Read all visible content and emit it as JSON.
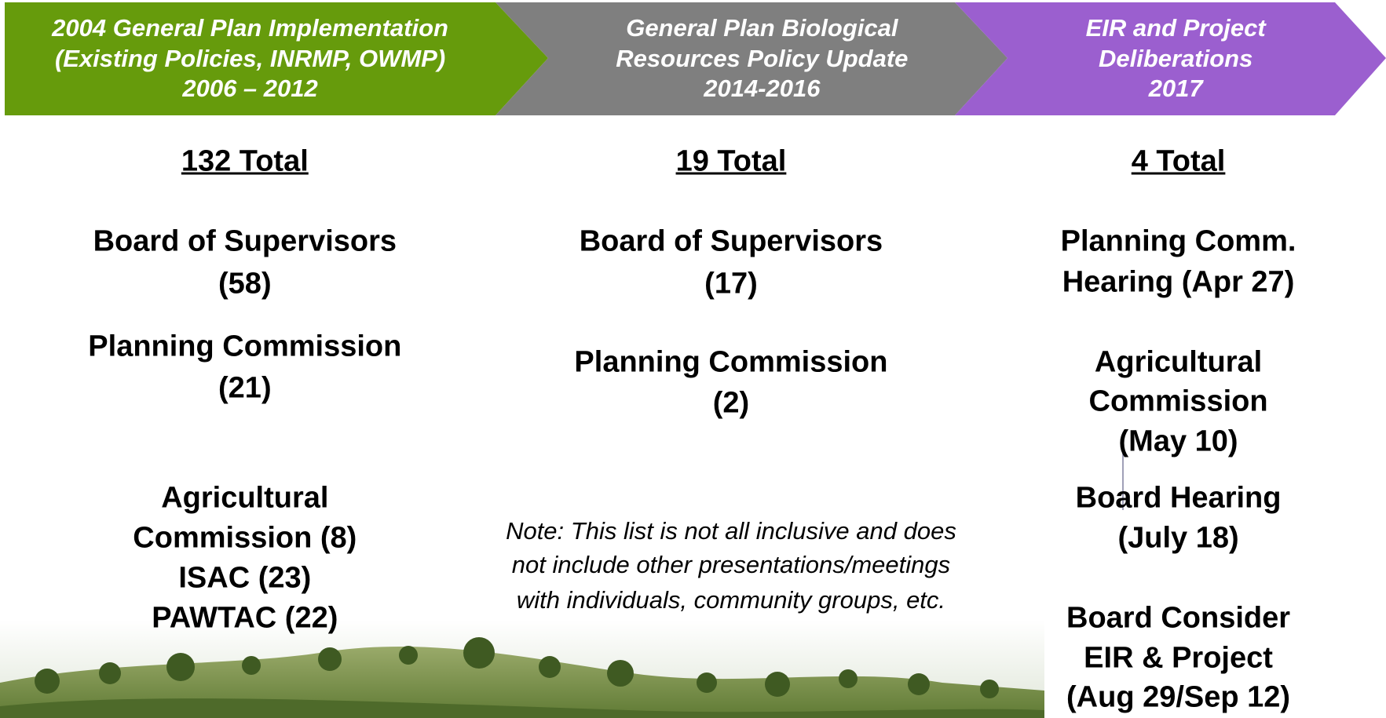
{
  "phases": [
    {
      "title": [
        "2004 General Plan Implementation",
        "(Existing Policies, INRMP, OWMP)",
        "2006 – 2012"
      ],
      "total": "132 Total",
      "items": [
        {
          "lines": [
            "Board of Supervisors",
            "(58)"
          ]
        },
        {
          "lines": [
            "Planning Commission",
            "(21)"
          ]
        },
        {
          "lines": [
            "Agricultural",
            "Commission (8)",
            "ISAC (23)",
            "PAWTAC (22)"
          ]
        }
      ]
    },
    {
      "title": [
        "General Plan Biological",
        "Resources Policy Update",
        "2014-2016"
      ],
      "total": "19 Total",
      "items": [
        {
          "lines": [
            "Board of Supervisors",
            "(17)"
          ]
        },
        {
          "lines": [
            "Planning Commission",
            "(2)"
          ]
        }
      ],
      "note": [
        "Note:  This list is not all inclusive and does",
        "not include other presentations/meetings",
        "with individuals, community groups, etc."
      ]
    },
    {
      "title": [
        "EIR and Project",
        "Deliberations",
        "2017"
      ],
      "total": "4 Total",
      "items": [
        {
          "lines": [
            "Planning Comm.",
            "Hearing (Apr 27)"
          ]
        },
        {
          "lines": [
            "Agricultural",
            "Commission",
            "(May 10)"
          ]
        },
        {
          "lines": [
            "Board Hearing",
            "(July 18)"
          ]
        },
        {
          "lines": [
            "Board Consider",
            "EIR & Project",
            "(Aug 29/Sep 12)"
          ]
        }
      ]
    }
  ]
}
